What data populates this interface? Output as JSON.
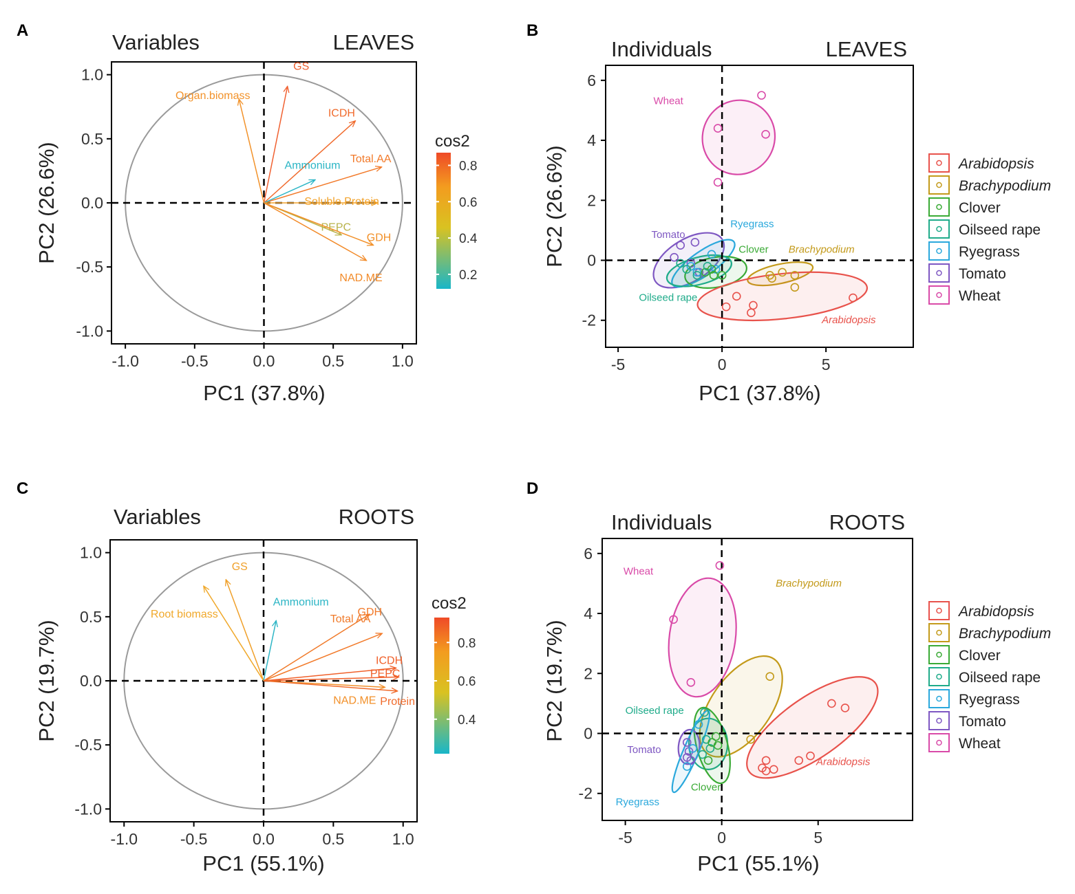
{
  "panels": {
    "A": {
      "letter": "A",
      "title_left": "Variables",
      "title_right": "LEAVES",
      "xlabel": "PC1 (37.8%)",
      "ylabel": "PC2 (26.6%)",
      "ticks": [
        "-1.0",
        "-0.5",
        "0.0",
        "0.5",
        "1.0"
      ],
      "legend": {
        "title": "cos2",
        "labels": [
          "0.8",
          "0.6",
          "0.4",
          "0.2"
        ]
      }
    },
    "B": {
      "letter": "B",
      "title_left": "Individuals",
      "title_right": "LEAVES",
      "xlabel": "PC1 (37.8%)",
      "ylabel": "PC2 (26.6%)",
      "xticks": [
        "-5",
        "0",
        "5"
      ],
      "yticks": [
        "6",
        "4",
        "2",
        "0",
        "-2"
      ]
    },
    "C": {
      "letter": "C",
      "title_left": "Variables",
      "title_right": "ROOTS",
      "xlabel": "PC1 (55.1%)",
      "ylabel": "PC2 (19.7%)",
      "ticks": [
        "-1.0",
        "-0.5",
        "0.0",
        "0.5",
        "1.0"
      ],
      "legend": {
        "title": "cos2",
        "labels": [
          "0.8",
          "0.6",
          "0.4"
        ]
      }
    },
    "D": {
      "letter": "D",
      "title_left": "Individuals",
      "title_right": "ROOTS",
      "xlabel": "PC1 (55.1%)",
      "ylabel": "PC2 (19.7%)",
      "xticks": [
        "-5",
        "0",
        "5"
      ],
      "yticks": [
        "6",
        "4",
        "2",
        "0",
        "-2"
      ]
    }
  },
  "species_legend": [
    {
      "name": "Arabidopsis",
      "color": "#e8524b",
      "italic": true
    },
    {
      "name": "Brachypodium",
      "color": "#c39a1a",
      "italic": true
    },
    {
      "name": "Clover",
      "color": "#3aaa35",
      "italic": false
    },
    {
      "name": "Oilseed rape",
      "color": "#1fab8a",
      "italic": false
    },
    {
      "name": "Ryegrass",
      "color": "#2aa8dc",
      "italic": false
    },
    {
      "name": "Tomato",
      "color": "#7e57c2",
      "italic": false
    },
    {
      "name": "Wheat",
      "color": "#d94aa8",
      "italic": false
    }
  ],
  "chart_data": [
    {
      "panel": "A",
      "type": "scatter",
      "subtype": "pca-variable-correlation-circle",
      "title": "Variables LEAVES",
      "xlabel": "PC1 (37.8%)",
      "ylabel": "PC2 (26.6%)",
      "xlim": [
        -1.1,
        1.1
      ],
      "ylim": [
        -1.1,
        1.1
      ],
      "color_scale": "cos2",
      "vectors": [
        {
          "label": "GS",
          "x": 0.17,
          "y": 0.91,
          "cos2": 0.85,
          "color": "#f06030"
        },
        {
          "label": "Organ.biomass",
          "x": -0.18,
          "y": 0.81,
          "cos2": 0.68,
          "color": "#f2922a"
        },
        {
          "label": "ICDH",
          "x": 0.66,
          "y": 0.64,
          "cos2": 0.8,
          "color": "#f06a2c"
        },
        {
          "label": "Total.AA",
          "x": 0.85,
          "y": 0.28,
          "cos2": 0.75,
          "color": "#f27a2a"
        },
        {
          "label": "Ammonium",
          "x": 0.37,
          "y": 0.18,
          "cos2": 0.18,
          "color": "#2bb5c5"
        },
        {
          "label": "Soluble.Protein",
          "x": 0.82,
          "y": 0.0,
          "cos2": 0.62,
          "color": "#f2a22a"
        },
        {
          "label": "PEPC",
          "x": 0.56,
          "y": -0.25,
          "cos2": 0.4,
          "color": "#b8b24a"
        },
        {
          "label": "GDH",
          "x": 0.79,
          "y": -0.33,
          "cos2": 0.68,
          "color": "#f29028"
        },
        {
          "label": "NAD.ME",
          "x": 0.74,
          "y": -0.45,
          "cos2": 0.72,
          "color": "#f28a28"
        }
      ]
    },
    {
      "panel": "B",
      "type": "scatter",
      "subtype": "pca-individuals",
      "title": "Individuals LEAVES",
      "xlabel": "PC1 (37.8%)",
      "ylabel": "PC2 (26.6%)",
      "xlim": [
        -5.6,
        9.2
      ],
      "ylim": [
        -2.9,
        6.5
      ],
      "series": [
        {
          "name": "Wheat",
          "color": "#d94aa8",
          "label_x": -3.3,
          "label_y": 5.2,
          "ellipse": {
            "cx": 0.8,
            "cy": 4.1,
            "rx": 1.8,
            "ry": 1.2,
            "angle": 65
          },
          "points": [
            [
              1.9,
              5.5
            ],
            [
              2.1,
              4.2
            ],
            [
              -0.2,
              4.4
            ],
            [
              -0.2,
              2.6
            ]
          ]
        },
        {
          "name": "Tomato",
          "color": "#7e57c2",
          "label_x": -3.4,
          "label_y": 0.75,
          "ellipse": {
            "cx": -1.6,
            "cy": 0.0,
            "rx": 1.9,
            "ry": 0.7,
            "angle": 32
          },
          "points": [
            [
              -2.0,
              0.5
            ],
            [
              -1.3,
              0.6
            ],
            [
              -2.3,
              0.1
            ],
            [
              -1.5,
              -0.1
            ],
            [
              -1.1,
              -0.4
            ]
          ]
        },
        {
          "name": "Ryegrass",
          "color": "#2aa8dc",
          "label_x": 0.4,
          "label_y": 1.1,
          "ellipse": {
            "cx": -0.9,
            "cy": -0.1,
            "rx": 1.8,
            "ry": 0.4,
            "angle": 35
          },
          "points": [
            [
              -1.5,
              -0.2
            ],
            [
              -1.2,
              -0.4
            ],
            [
              -0.5,
              0.2
            ],
            [
              -0.3,
              -0.3
            ]
          ]
        },
        {
          "name": "Clover",
          "color": "#3aaa35",
          "label_x": 0.8,
          "label_y": 0.25,
          "ellipse": {
            "cx": -0.3,
            "cy": -0.4,
            "rx": 1.5,
            "ry": 0.5,
            "angle": 10
          },
          "points": [
            [
              -0.5,
              -0.3
            ],
            [
              -0.4,
              -0.5
            ],
            [
              0.0,
              -0.5
            ],
            [
              -0.8,
              -0.4
            ]
          ]
        },
        {
          "name": "Oilseed rape",
          "color": "#1fab8a",
          "label_x": -4.0,
          "label_y": -1.35,
          "ellipse": {
            "cx": -1.1,
            "cy": -0.35,
            "rx": 1.6,
            "ry": 0.45,
            "angle": 15
          },
          "points": [
            [
              -2.0,
              -0.1
            ],
            [
              -1.7,
              -0.3
            ],
            [
              -1.2,
              -0.5
            ],
            [
              -0.7,
              -0.2
            ]
          ]
        },
        {
          "name": "Brachypodium",
          "color": "#c39a1a",
          "label_x": 3.2,
          "label_y": 0.25,
          "ellipse": {
            "cx": 2.8,
            "cy": -0.45,
            "rx": 1.6,
            "ry": 0.32,
            "angle": 12
          },
          "points": [
            [
              2.3,
              -0.5
            ],
            [
              2.9,
              -0.4
            ],
            [
              3.5,
              -0.5
            ],
            [
              3.5,
              -0.9
            ],
            [
              2.4,
              -0.6
            ]
          ]
        },
        {
          "name": "Arabidopsis",
          "color": "#e8524b",
          "label_x": 4.8,
          "label_y": -2.1,
          "ellipse": {
            "cx": 2.9,
            "cy": -1.2,
            "rx": 4.1,
            "ry": 0.75,
            "angle": 6
          },
          "points": [
            [
              0.2,
              -1.55
            ],
            [
              0.7,
              -1.2
            ],
            [
              1.5,
              -1.5
            ],
            [
              1.4,
              -1.75
            ],
            [
              6.3,
              -1.25
            ]
          ]
        }
      ]
    },
    {
      "panel": "C",
      "type": "scatter",
      "subtype": "pca-variable-correlation-circle",
      "title": "Variables ROOTS",
      "xlabel": "PC1 (55.1%)",
      "ylabel": "PC2 (19.7%)",
      "xlim": [
        -1.1,
        1.1
      ],
      "ylim": [
        -1.1,
        1.1
      ],
      "color_scale": "cos2",
      "vectors": [
        {
          "label": "GS",
          "x": -0.27,
          "y": 0.79,
          "cos2": 0.65,
          "color": "#f0a02a"
        },
        {
          "label": "Root biomass",
          "x": -0.43,
          "y": 0.74,
          "cos2": 0.6,
          "color": "#f0a82a"
        },
        {
          "label": "Ammonium",
          "x": 0.09,
          "y": 0.47,
          "cos2": 0.25,
          "color": "#2bb5c5"
        },
        {
          "label": "Total AA",
          "x": 0.76,
          "y": 0.52,
          "cos2": 0.75,
          "color": "#f07a2a"
        },
        {
          "label": "GDH",
          "x": 0.85,
          "y": 0.37,
          "cos2": 0.8,
          "color": "#f27a2a"
        },
        {
          "label": "ICDH",
          "x": 0.95,
          "y": 0.1,
          "cos2": 0.88,
          "color": "#f0602a"
        },
        {
          "label": "PEPC",
          "x": 0.97,
          "y": 0.03,
          "cos2": 0.88,
          "color": "#f0602a"
        },
        {
          "label": "NAD.ME",
          "x": 0.87,
          "y": -0.05,
          "cos2": 0.75,
          "color": "#f2902a"
        },
        {
          "label": "Protein",
          "x": 0.96,
          "y": -0.08,
          "cos2": 0.85,
          "color": "#f06a2a"
        }
      ]
    },
    {
      "panel": "D",
      "type": "scatter",
      "subtype": "pca-individuals",
      "title": "Individuals ROOTS",
      "xlabel": "PC1 (55.1%)",
      "ylabel": "PC2 (19.7%)",
      "xlim": [
        -6.2,
        9.9
      ],
      "ylim": [
        -2.9,
        6.5
      ],
      "series": [
        {
          "name": "Wheat",
          "color": "#d94aa8",
          "label_x": -5.1,
          "label_y": 5.3,
          "ellipse": {
            "cx": -1.0,
            "cy": 3.2,
            "rx": 3.1,
            "ry": 1.1,
            "angle": 82
          },
          "points": [
            [
              -0.1,
              5.6
            ],
            [
              -2.5,
              3.8
            ],
            [
              -1.6,
              1.7
            ]
          ]
        },
        {
          "name": "Brachypodium",
          "color": "#c39a1a",
          "label_x": 2.8,
          "label_y": 4.9,
          "ellipse": {
            "cx": 1.0,
            "cy": 0.9,
            "rx": 3.0,
            "ry": 1.0,
            "angle": 55
          },
          "points": [
            [
              2.5,
              1.9
            ],
            [
              1.5,
              -0.2
            ]
          ]
        },
        {
          "name": "Arabidopsis",
          "color": "#e8524b",
          "label_x": 4.9,
          "label_y": -1.05,
          "ellipse": {
            "cx": 4.7,
            "cy": 0.2,
            "rx": 4.0,
            "ry": 1.0,
            "angle": 35
          },
          "points": [
            [
              5.7,
              1.0
            ],
            [
              6.4,
              0.85
            ],
            [
              2.3,
              -0.9
            ],
            [
              2.1,
              -1.15
            ],
            [
              2.3,
              -1.25
            ],
            [
              2.7,
              -1.2
            ],
            [
              4.0,
              -0.9
            ],
            [
              4.6,
              -0.75
            ]
          ]
        },
        {
          "name": "Oilseed rape",
          "color": "#1fab8a",
          "label_x": -5.0,
          "label_y": 0.65,
          "ellipse": {
            "cx": -0.7,
            "cy": -0.35,
            "rx": 1.0,
            "ry": 0.85,
            "angle": 0
          },
          "points": [
            [
              -0.9,
              0.7
            ],
            [
              -0.8,
              -0.2
            ],
            [
              -0.6,
              -0.5
            ],
            [
              -1.0,
              -0.7
            ]
          ]
        },
        {
          "name": "Clover",
          "color": "#3aaa35",
          "label_x": -1.6,
          "label_y": -1.9,
          "ellipse": {
            "cx": -0.5,
            "cy": -0.4,
            "rx": 0.8,
            "ry": 1.3,
            "angle": 15
          },
          "points": [
            [
              -0.3,
              -0.1
            ],
            [
              -0.2,
              -0.4
            ],
            [
              -0.7,
              -0.9
            ],
            [
              -0.5,
              -0.3
            ]
          ]
        },
        {
          "name": "Tomato",
          "color": "#7e57c2",
          "label_x": -4.9,
          "label_y": -0.65,
          "ellipse": {
            "cx": -1.7,
            "cy": -0.45,
            "rx": 0.9,
            "ry": 0.35,
            "angle": 85
          },
          "points": [
            [
              -1.8,
              -0.3
            ],
            [
              -1.7,
              -0.6
            ],
            [
              -1.6,
              -0.9
            ],
            [
              -1.8,
              -0.8
            ]
          ]
        },
        {
          "name": "Ryegrass",
          "color": "#2aa8dc",
          "label_x": -5.5,
          "label_y": -2.4,
          "ellipse": {
            "cx": -1.6,
            "cy": -0.6,
            "rx": 2.3,
            "ry": 0.25,
            "angle": 67
          },
          "points": [
            [
              -1.2,
              0.3
            ],
            [
              -1.5,
              -0.5
            ],
            [
              -1.8,
              -1.1
            ]
          ]
        }
      ]
    }
  ]
}
